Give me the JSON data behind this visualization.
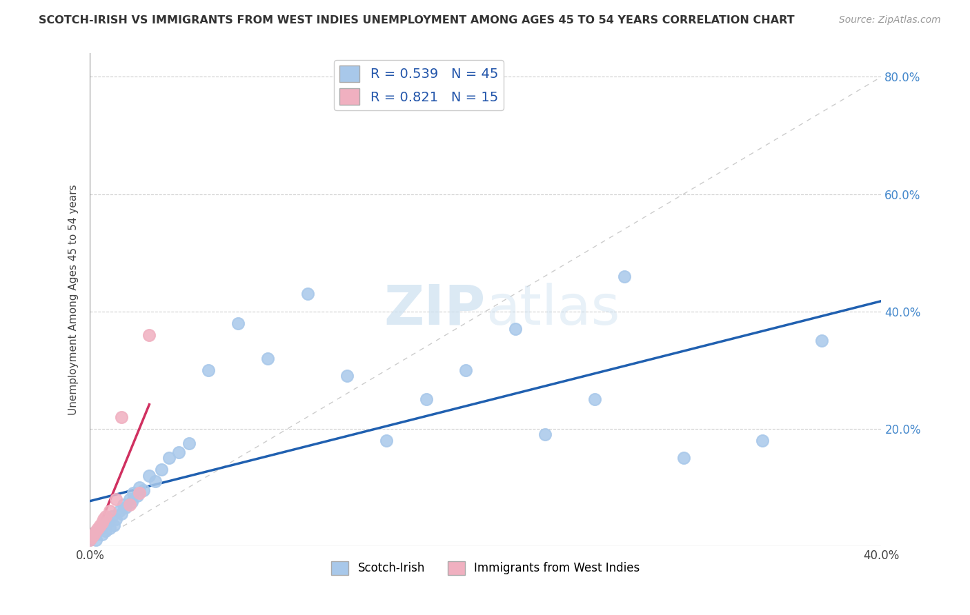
{
  "title": "SCOTCH-IRISH VS IMMIGRANTS FROM WEST INDIES UNEMPLOYMENT AMONG AGES 45 TO 54 YEARS CORRELATION CHART",
  "source": "Source: ZipAtlas.com",
  "ylabel": "Unemployment Among Ages 45 to 54 years",
  "xlabel_scotch": "Scotch-Irish",
  "xlabel_west": "Immigrants from West Indies",
  "xlim": [
    0.0,
    0.4
  ],
  "ylim": [
    0.0,
    0.84
  ],
  "R_blue": 0.539,
  "N_blue": 45,
  "R_pink": 0.821,
  "N_pink": 15,
  "blue_color": "#a8c8ea",
  "pink_color": "#f0b0c0",
  "blue_line_color": "#2060b0",
  "pink_line_color": "#d03060",
  "diag_color": "#cccccc",
  "watermark_color": "#cce0f0",
  "scotch_irish_x": [
    0.0,
    0.001,
    0.002,
    0.003,
    0.004,
    0.005,
    0.006,
    0.007,
    0.008,
    0.009,
    0.01,
    0.011,
    0.012,
    0.013,
    0.015,
    0.016,
    0.017,
    0.018,
    0.02,
    0.021,
    0.022,
    0.024,
    0.025,
    0.027,
    0.03,
    0.033,
    0.036,
    0.04,
    0.045,
    0.05,
    0.06,
    0.075,
    0.09,
    0.11,
    0.13,
    0.15,
    0.17,
    0.19,
    0.215,
    0.23,
    0.255,
    0.27,
    0.3,
    0.34,
    0.37
  ],
  "scotch_irish_y": [
    0.01,
    0.015,
    0.02,
    0.01,
    0.025,
    0.03,
    0.02,
    0.035,
    0.025,
    0.04,
    0.03,
    0.05,
    0.035,
    0.045,
    0.06,
    0.055,
    0.07,
    0.065,
    0.08,
    0.075,
    0.09,
    0.085,
    0.1,
    0.095,
    0.12,
    0.11,
    0.13,
    0.15,
    0.16,
    0.175,
    0.3,
    0.38,
    0.32,
    0.43,
    0.29,
    0.18,
    0.25,
    0.3,
    0.37,
    0.19,
    0.25,
    0.46,
    0.15,
    0.18,
    0.35
  ],
  "west_indies_x": [
    0.0,
    0.001,
    0.002,
    0.003,
    0.004,
    0.005,
    0.006,
    0.007,
    0.008,
    0.01,
    0.013,
    0.016,
    0.02,
    0.025,
    0.03
  ],
  "west_indies_y": [
    0.01,
    0.015,
    0.02,
    0.025,
    0.03,
    0.035,
    0.04,
    0.045,
    0.05,
    0.06,
    0.08,
    0.22,
    0.07,
    0.09,
    0.36
  ]
}
